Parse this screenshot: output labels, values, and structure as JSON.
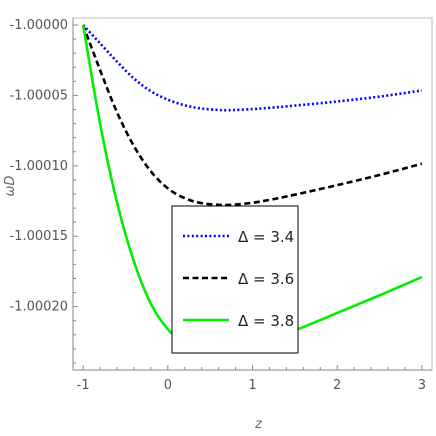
{
  "chart_data": {
    "type": "line",
    "xlabel": "z",
    "ylabel": "ωD",
    "xlim": [
      -1.12,
      3.12
    ],
    "ylim": [
      -1.000245,
      -0.999995
    ],
    "x_ticks": [
      -1,
      0,
      1,
      2,
      3
    ],
    "x_tick_labels": [
      "-1",
      "0",
      "1",
      "2",
      "3"
    ],
    "y_ticks": [
      -1.0,
      -1.00005,
      -1.0001,
      -1.00015,
      -1.0002
    ],
    "y_tick_labels": [
      "-1.00000",
      "-1.00005",
      "-1.00010",
      "-1.00015",
      "-1.00020"
    ],
    "grid": false,
    "legend_position": "center-bottom",
    "series": [
      {
        "name": "Δ = 3.4",
        "color": "#0000ff",
        "style": "dotted",
        "x": [
          -1.0,
          -0.8,
          -0.6,
          -0.4,
          -0.2,
          0.0,
          0.2,
          0.4,
          0.6,
          0.7,
          0.8,
          1.0,
          1.2,
          1.5,
          2.0,
          2.5,
          3.0
        ],
        "y": [
          -1.0,
          -1.000013,
          -1.000026,
          -1.000038,
          -1.000047,
          -1.000053,
          -1.000057,
          -1.0000593,
          -1.0000603,
          -1.0000605,
          -1.0000603,
          -1.0000597,
          -1.0000588,
          -1.0000572,
          -1.0000543,
          -1.0000508,
          -1.0000465
        ]
      },
      {
        "name": "Δ = 3.6",
        "color": "#000000",
        "style": "dashed",
        "x": [
          -1.0,
          -0.8,
          -0.6,
          -0.4,
          -0.2,
          0.0,
          0.2,
          0.4,
          0.6,
          0.7,
          0.8,
          1.0,
          1.2,
          1.5,
          2.0,
          2.5,
          3.0
        ],
        "y": [
          -1.0,
          -1.000032,
          -1.000062,
          -1.000086,
          -1.000104,
          -1.000116,
          -1.000123,
          -1.0001265,
          -1.0001277,
          -1.0001278,
          -1.0001275,
          -1.0001262,
          -1.0001242,
          -1.0001205,
          -1.0001137,
          -1.0001065,
          -1.0000985
        ]
      },
      {
        "name": "Δ = 3.8",
        "color": "#00ee00",
        "style": "solid",
        "x": [
          -1.0,
          -0.8,
          -0.6,
          -0.4,
          -0.2,
          0.0,
          0.2,
          0.4,
          0.6,
          0.7,
          0.8,
          1.0,
          1.2,
          1.5,
          2.0,
          2.5,
          3.0
        ],
        "y": [
          -1.0,
          -1.00007,
          -1.000126,
          -1.000168,
          -1.000198,
          -1.000216,
          -1.000226,
          -1.0002295,
          -1.0002303,
          -1.0002302,
          -1.0002297,
          -1.0002275,
          -1.000224,
          -1.000217,
          -1.0002045,
          -1.000192,
          -1.000179
        ]
      }
    ]
  }
}
